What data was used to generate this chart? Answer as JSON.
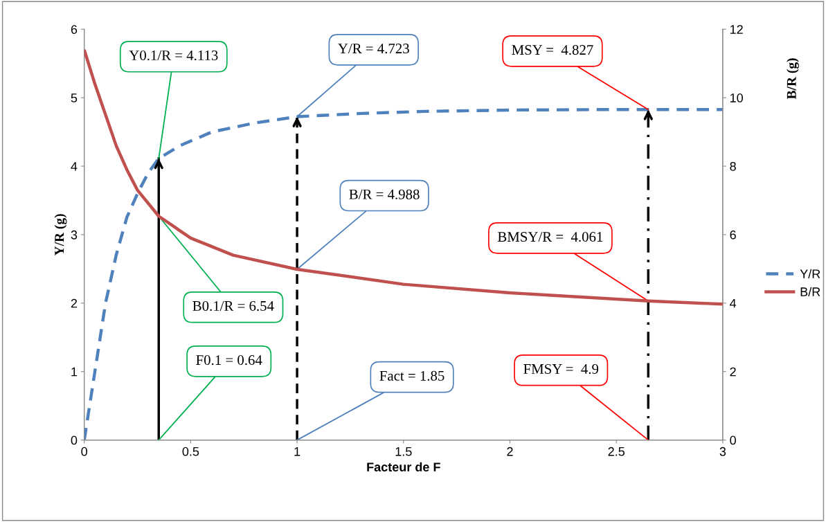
{
  "chart_data": {
    "type": "line",
    "xlabel": "Facteur de F",
    "ylabel": "Y/R (g)",
    "y2label": "B/R (g)",
    "xlim": [
      0,
      3
    ],
    "xticks": [
      0,
      0.5,
      1,
      1.5,
      2,
      2.5,
      3
    ],
    "ylim": [
      0,
      6
    ],
    "yticks": [
      0,
      1,
      2,
      3,
      4,
      5,
      6
    ],
    "y2lim": [
      0,
      12
    ],
    "y2ticks": [
      0,
      2,
      4,
      6,
      8,
      10,
      12
    ],
    "grid": false,
    "legend": "right",
    "marker": "none",
    "series": [
      {
        "name": "Y/R",
        "color": "#4f81bd",
        "line_style": "dashed",
        "x": [
          0,
          0.05,
          0.1,
          0.15,
          0.2,
          0.25,
          0.3,
          0.35,
          0.45,
          0.6,
          0.8,
          1.0,
          1.3,
          1.6,
          2.0,
          2.4,
          2.65,
          3.0
        ],
        "values": [
          0,
          1.0,
          2.0,
          2.7,
          3.25,
          3.6,
          3.9,
          4.113,
          4.3,
          4.5,
          4.63,
          4.723,
          4.77,
          4.8,
          4.82,
          4.826,
          4.827,
          4.827
        ]
      },
      {
        "name": "B/R",
        "color": "#c0504d",
        "line_style": "solid",
        "axis": "y2",
        "x": [
          0,
          0.05,
          0.1,
          0.15,
          0.2,
          0.25,
          0.35,
          0.5,
          0.7,
          1.0,
          1.5,
          2.0,
          2.65,
          3.0
        ],
        "values": [
          11.4,
          10.4,
          9.5,
          8.6,
          7.9,
          7.3,
          6.54,
          5.9,
          5.4,
          4.988,
          4.55,
          4.3,
          4.061,
          3.97
        ]
      }
    ],
    "annotations": [
      {
        "text": "Y0.1/R = 4.113",
        "x": 0.35,
        "y": 4.113
      },
      {
        "text": "Y/R = 4.723",
        "x": 1,
        "y": 4.723
      },
      {
        "text": "MSY =  4.827",
        "x": 2.65,
        "y": 4.827
      },
      {
        "text": "B/R = 4.988",
        "x": 1,
        "y": 2.494
      },
      {
        "text": "BMSY/R =  4.061",
        "x": 2.65,
        "y": 2.03
      },
      {
        "text": "B0.1/R = 6.54",
        "x": 0.35,
        "y": 3.27
      },
      {
        "text": "F0.1 = 0.64",
        "x": 0.35,
        "y": 0
      },
      {
        "text": "Fact = 1.85",
        "x": 1,
        "y": 0
      },
      {
        "text": "FMSY =  4.9",
        "x": 2.65,
        "y": 0
      }
    ],
    "ref_lines": [
      {
        "axis": "x",
        "value": 0.35,
        "color": "#000000",
        "line_style": "solid"
      },
      {
        "axis": "x",
        "value": 1,
        "color": "#000000",
        "line_style": "dashed"
      },
      {
        "axis": "x",
        "value": 2.65,
        "color": "#000000",
        "line_style": "dashdot"
      }
    ]
  }
}
